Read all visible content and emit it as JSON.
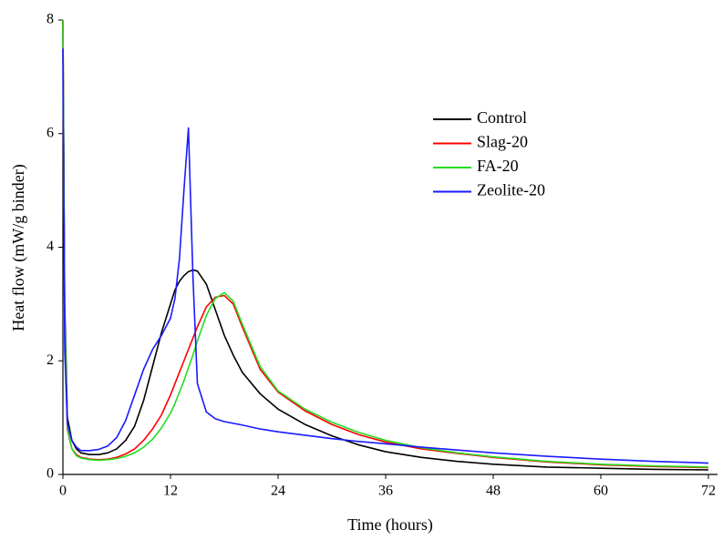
{
  "chart_data": {
    "type": "line",
    "xlabel": "Time (hours)",
    "ylabel": "Heat flow (mW/g binder)",
    "x": [
      0,
      0.2,
      0.5,
      1,
      1.5,
      2,
      3,
      4,
      5,
      6,
      7,
      8,
      9,
      10,
      11,
      12,
      12.5,
      13,
      13.5,
      14,
      14.5,
      15,
      16,
      17,
      18,
      19,
      20,
      22,
      24,
      27,
      30,
      33,
      36,
      40,
      44,
      48,
      54,
      60,
      66,
      72
    ],
    "series": [
      {
        "name": "Control",
        "color": "#000000",
        "values": [
          8,
          3,
          1.0,
          0.6,
          0.45,
          0.38,
          0.35,
          0.35,
          0.38,
          0.45,
          0.6,
          0.85,
          1.3,
          1.9,
          2.5,
          3.0,
          3.25,
          3.4,
          3.5,
          3.57,
          3.6,
          3.58,
          3.35,
          2.9,
          2.45,
          2.1,
          1.8,
          1.42,
          1.15,
          0.88,
          0.68,
          0.52,
          0.4,
          0.3,
          0.23,
          0.18,
          0.13,
          0.11,
          0.09,
          0.08
        ]
      },
      {
        "name": "Slag-20",
        "color": "#ff0000",
        "values": [
          8,
          2.5,
          0.8,
          0.45,
          0.35,
          0.3,
          0.27,
          0.26,
          0.27,
          0.3,
          0.36,
          0.45,
          0.6,
          0.8,
          1.05,
          1.4,
          1.6,
          1.8,
          2.0,
          2.2,
          2.4,
          2.6,
          2.95,
          3.12,
          3.15,
          3.0,
          2.6,
          1.85,
          1.45,
          1.12,
          0.88,
          0.7,
          0.57,
          0.45,
          0.37,
          0.3,
          0.22,
          0.17,
          0.14,
          0.12
        ]
      },
      {
        "name": "FA-20",
        "color": "#22dd22",
        "values": [
          8,
          2.7,
          0.85,
          0.45,
          0.33,
          0.29,
          0.26,
          0.25,
          0.26,
          0.28,
          0.32,
          0.38,
          0.48,
          0.62,
          0.82,
          1.08,
          1.25,
          1.45,
          1.65,
          1.88,
          2.1,
          2.35,
          2.8,
          3.1,
          3.2,
          3.05,
          2.65,
          1.9,
          1.47,
          1.15,
          0.92,
          0.74,
          0.6,
          0.47,
          0.38,
          0.31,
          0.23,
          0.18,
          0.15,
          0.13
        ]
      },
      {
        "name": "Zeolite-20",
        "color": "#1a1aff",
        "values": [
          7.5,
          2.2,
          0.9,
          0.6,
          0.48,
          0.42,
          0.42,
          0.44,
          0.5,
          0.65,
          0.95,
          1.4,
          1.85,
          2.2,
          2.45,
          2.75,
          3.1,
          3.8,
          5.0,
          6.1,
          3.5,
          1.6,
          1.1,
          0.98,
          0.93,
          0.9,
          0.87,
          0.8,
          0.75,
          0.69,
          0.63,
          0.58,
          0.54,
          0.48,
          0.43,
          0.38,
          0.32,
          0.27,
          0.23,
          0.2
        ]
      }
    ],
    "xlim": [
      0,
      72
    ],
    "xticks": [
      0,
      12,
      24,
      36,
      48,
      60,
      72
    ],
    "ylim": [
      0,
      8
    ],
    "yticks": [
      0,
      2,
      4,
      6,
      8
    ],
    "grid": false,
    "legend_loc": "upper right"
  }
}
